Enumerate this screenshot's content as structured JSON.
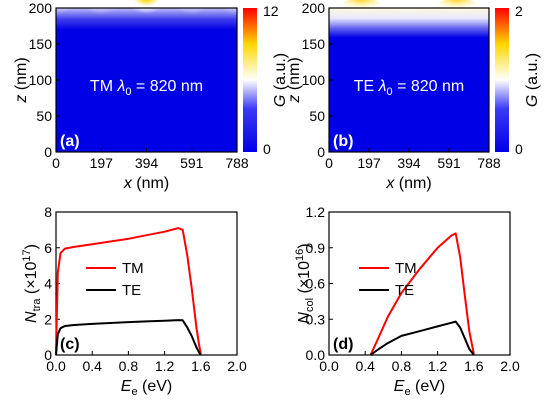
{
  "colors": {
    "heat_cold": "#0000e6",
    "heat_mid": "#ffffff",
    "heat_warm": "#ffd700",
    "heat_hot": "#ff0000",
    "tm_line": "#ff0000",
    "te_line": "#000000"
  },
  "chart_data": [
    {
      "type": "heatmap",
      "panel": "(a)",
      "annotation": "TM",
      "annotation_lambda": "λ",
      "annotation_lambda_sub": "0",
      "annotation_value": " = 820 nm",
      "xlabel": "x",
      "xlabel_unit": " (nm)",
      "ylabel": "z",
      "ylabel_unit": " (nm)",
      "xlim": [
        0,
        788
      ],
      "ylim": [
        0,
        200
      ],
      "x_ticks": [
        "0",
        "197",
        "394",
        "591",
        "788"
      ],
      "y_ticks": [
        "0",
        "50",
        "100",
        "150",
        "200"
      ],
      "colorbar_label": "G",
      "colorbar_unit": " (a.u.)",
      "colorbar_range": [
        0,
        12
      ],
      "colorbar_ticks": [
        "0",
        "12"
      ],
      "field_peaks_x": [
        394
      ],
      "field_minor_x": [
        0,
        197,
        591,
        788
      ]
    },
    {
      "type": "heatmap",
      "panel": "(b)",
      "annotation": "TE",
      "annotation_lambda": "λ",
      "annotation_lambda_sub": "0",
      "annotation_value": " = 820 nm",
      "xlabel": "x",
      "xlabel_unit": " (nm)",
      "ylabel": "z",
      "ylabel_unit": " (nm)",
      "xlim": [
        0,
        788
      ],
      "ylim": [
        0,
        200
      ],
      "x_ticks": [
        "0",
        "197",
        "394",
        "591",
        "788"
      ],
      "y_ticks": [
        "0",
        "50",
        "100",
        "150",
        "200"
      ],
      "colorbar_label": "G",
      "colorbar_unit": " (a.u.)",
      "colorbar_range": [
        0,
        2
      ],
      "colorbar_ticks": [
        "0",
        "2"
      ],
      "field_peaks_x": [
        160,
        630
      ],
      "field_minor_x": [
        394
      ]
    },
    {
      "type": "line",
      "panel": "(c)",
      "xlabel": "E",
      "xlabel_sub": "e",
      "xlabel_unit": " (eV)",
      "ylabel": "N",
      "ylabel_sub": "tra",
      "ylabel_unit_pre": " (×10",
      "ylabel_unit_sup": "17",
      "ylabel_unit_post": ")",
      "xlim": [
        0,
        2.0
      ],
      "ylim": [
        0,
        8
      ],
      "x_ticks": [
        "0.0",
        "0.4",
        "0.8",
        "1.2",
        "1.6",
        "2.0"
      ],
      "y_ticks": [
        "0",
        "2",
        "4",
        "6",
        "8"
      ],
      "legend": [
        "TM",
        "TE"
      ],
      "series": [
        {
          "name": "TM",
          "x": [
            0.0,
            0.02,
            0.05,
            0.1,
            0.2,
            0.4,
            0.6,
            0.8,
            1.0,
            1.2,
            1.35,
            1.4,
            1.45,
            1.5,
            1.55,
            1.58,
            1.6
          ],
          "y": [
            0.1,
            4.6,
            5.7,
            5.95,
            6.05,
            6.2,
            6.35,
            6.5,
            6.7,
            6.9,
            7.1,
            7.0,
            5.6,
            3.7,
            1.6,
            0.6,
            0.05
          ]
        },
        {
          "name": "TE",
          "x": [
            0.0,
            0.02,
            0.05,
            0.1,
            0.2,
            0.4,
            0.6,
            0.8,
            1.0,
            1.2,
            1.35,
            1.4,
            1.45,
            1.5,
            1.55,
            1.58,
            1.6
          ],
          "y": [
            0.0,
            1.15,
            1.5,
            1.62,
            1.68,
            1.74,
            1.79,
            1.84,
            1.88,
            1.92,
            1.95,
            1.94,
            1.55,
            1.05,
            0.45,
            0.15,
            0.0
          ]
        }
      ]
    },
    {
      "type": "line",
      "panel": "(d)",
      "xlabel": "E",
      "xlabel_sub": "e",
      "xlabel_unit": " (eV)",
      "ylabel": "N",
      "ylabel_sub": "col",
      "ylabel_unit_pre": " (×10",
      "ylabel_unit_sup": "16",
      "ylabel_unit_post": ")",
      "xlim": [
        0,
        2.0
      ],
      "ylim": [
        0,
        1.2
      ],
      "x_ticks": [
        "0.0",
        "0.4",
        "0.8",
        "1.2",
        "1.6",
        "2.0"
      ],
      "y_ticks": [
        "0.0",
        "0.3",
        "0.6",
        "0.9",
        "1.2"
      ],
      "legend": [
        "TM",
        "TE"
      ],
      "series": [
        {
          "name": "TM",
          "x": [
            0.46,
            0.55,
            0.65,
            0.8,
            1.0,
            1.2,
            1.35,
            1.4,
            1.45,
            1.5,
            1.55,
            1.6
          ],
          "y": [
            0.0,
            0.15,
            0.32,
            0.52,
            0.72,
            0.9,
            1.0,
            1.02,
            0.82,
            0.5,
            0.2,
            0.01
          ]
        },
        {
          "name": "TE",
          "x": [
            0.46,
            0.55,
            0.65,
            0.8,
            1.0,
            1.2,
            1.35,
            1.4,
            1.45,
            1.5,
            1.55,
            1.6
          ],
          "y": [
            0.0,
            0.05,
            0.1,
            0.16,
            0.2,
            0.24,
            0.27,
            0.28,
            0.23,
            0.14,
            0.05,
            0.0
          ]
        }
      ]
    }
  ]
}
